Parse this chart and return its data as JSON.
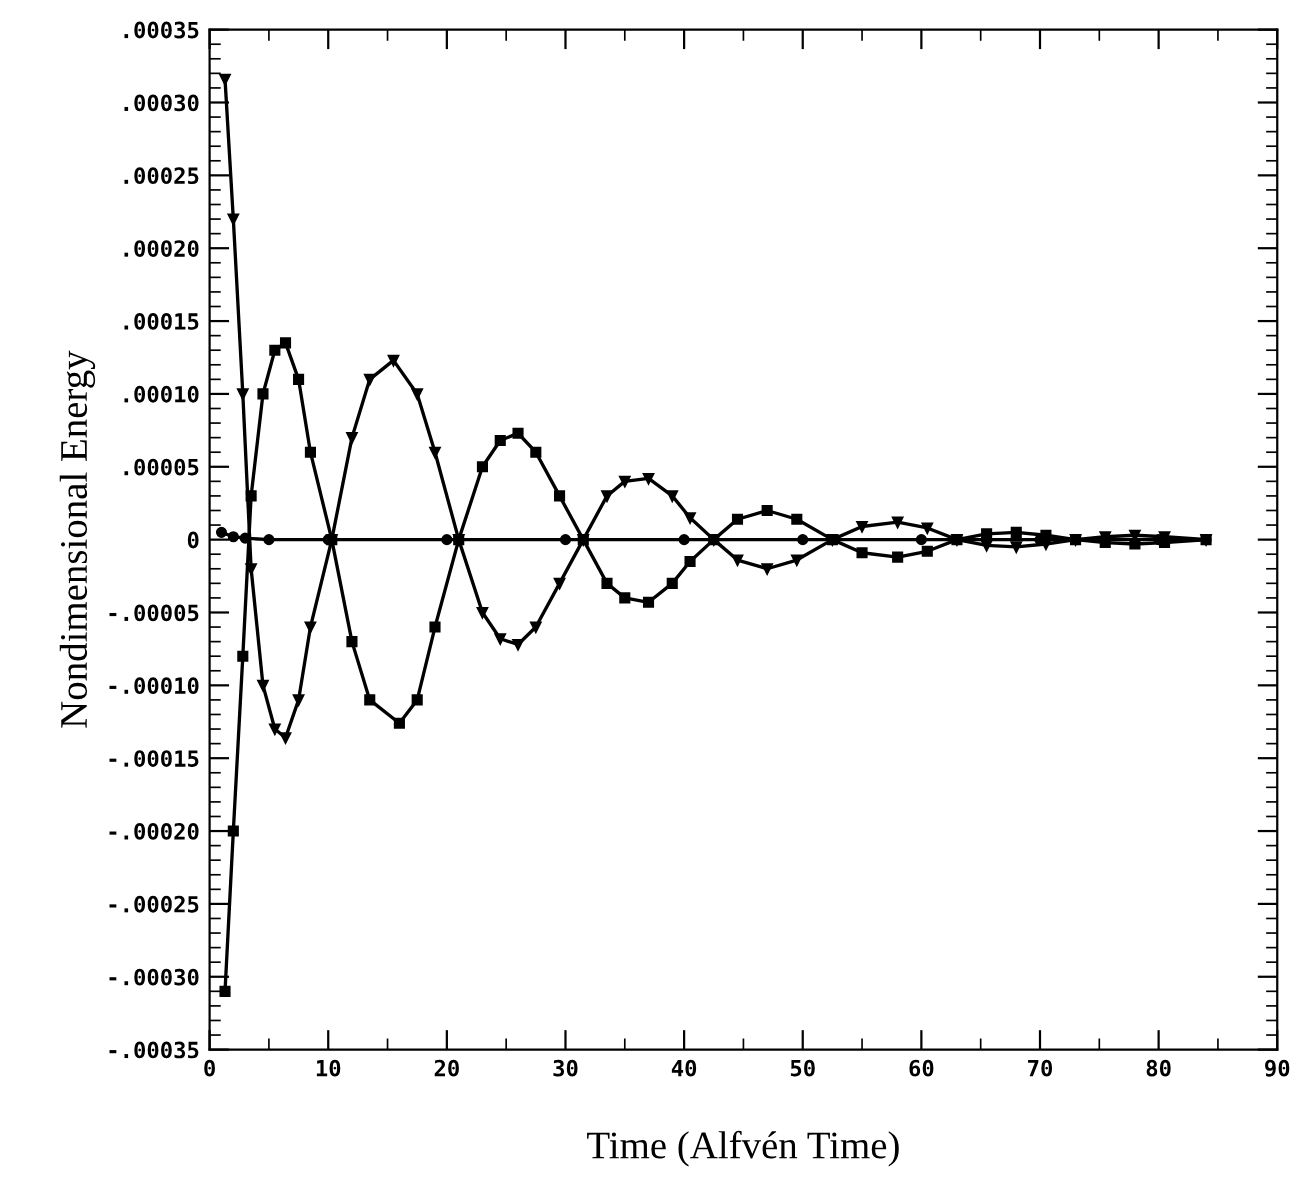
{
  "chart_data": {
    "type": "line",
    "xlabel": "Time (Alfvén Time)",
    "ylabel": "Nondimensional Energy",
    "xlim": [
      0,
      90
    ],
    "xticks": [
      0,
      10,
      20,
      30,
      40,
      50,
      60,
      70,
      80,
      90
    ],
    "ylim": [
      -0.00035,
      0.00035
    ],
    "yticks": [
      {
        "value": -0.00035,
        "label": "-.00035"
      },
      {
        "value": -0.0003,
        "label": "-.00030"
      },
      {
        "value": -0.00025,
        "label": "-.00025"
      },
      {
        "value": -0.0002,
        "label": "-.00020"
      },
      {
        "value": -0.00015,
        "label": "-.00015"
      },
      {
        "value": -0.0001,
        "label": "-.00010"
      },
      {
        "value": -5e-05,
        "label": "-.00005"
      },
      {
        "value": 0,
        "label": "0"
      },
      {
        "value": 5e-05,
        "label": ".00005"
      },
      {
        "value": 0.0001,
        "label": ".00010"
      },
      {
        "value": 0.00015,
        "label": ".00015"
      },
      {
        "value": 0.0002,
        "label": ".00020"
      },
      {
        "value": 0.00025,
        "label": ".00025"
      },
      {
        "value": 0.0003,
        "label": ".00030"
      },
      {
        "value": 0.00035,
        "label": ".00035"
      }
    ],
    "grid": false,
    "line_style": "solid",
    "series": [
      {
        "color": "#000000",
        "marker": "triangle",
        "x": [
          1.3,
          2,
          2.8,
          3.5,
          4.5,
          5.5,
          6.4,
          7.5,
          8.5,
          10.3,
          12,
          13.5,
          15.5,
          17.5,
          19,
          21,
          23,
          24.5,
          26,
          27.5,
          29.5,
          31.5,
          33.5,
          35,
          37,
          39,
          40.5,
          42.5,
          44.5,
          47,
          49.5,
          52.5,
          55,
          58,
          60.5,
          63,
          65.5,
          68,
          70.5,
          73,
          75.5,
          78,
          80.5,
          84
        ],
        "values": [
          0.000316,
          0.00022,
          0.0001,
          -2e-05,
          -0.0001,
          -0.00013,
          -0.000136,
          -0.00011,
          -6e-05,
          0,
          7e-05,
          0.00011,
          0.000123,
          0.0001,
          6e-05,
          0,
          -5e-05,
          -6.8e-05,
          -7.2e-05,
          -6e-05,
          -3e-05,
          0,
          3e-05,
          4e-05,
          4.2e-05,
          3e-05,
          1.5e-05,
          0,
          -1.4e-05,
          -2e-05,
          -1.4e-05,
          0,
          9e-06,
          1.2e-05,
          8e-06,
          0,
          -4e-06,
          -5e-06,
          -3e-06,
          0,
          2e-06,
          3e-06,
          2e-06,
          0
        ]
      },
      {
        "color": "#000000",
        "marker": "square",
        "x": [
          1.3,
          2,
          2.8,
          3.5,
          4.5,
          5.5,
          6.4,
          7.5,
          8.5,
          10.3,
          12,
          13.5,
          16,
          17.5,
          19,
          21,
          23,
          24.5,
          26,
          27.5,
          29.5,
          31.5,
          33.5,
          35,
          37,
          39,
          40.5,
          42.5,
          44.5,
          47,
          49.5,
          52.5,
          55,
          58,
          60.5,
          63,
          65.5,
          68,
          70.5,
          73,
          75.5,
          78,
          80.5,
          84
        ],
        "values": [
          -0.00031,
          -0.0002,
          -8e-05,
          3e-05,
          0.0001,
          0.00013,
          0.000135,
          0.00011,
          6e-05,
          0,
          -7e-05,
          -0.00011,
          -0.000126,
          -0.00011,
          -6e-05,
          0,
          5e-05,
          6.8e-05,
          7.3e-05,
          6e-05,
          3e-05,
          0,
          -3e-05,
          -4e-05,
          -4.3e-05,
          -3e-05,
          -1.5e-05,
          0,
          1.4e-05,
          2e-05,
          1.4e-05,
          0,
          -9e-06,
          -1.2e-05,
          -8e-06,
          0,
          4e-06,
          5e-06,
          3e-06,
          0,
          -2e-06,
          -3e-06,
          -2e-06,
          0
        ]
      },
      {
        "color": "#000000",
        "marker": "circle",
        "x": [
          1,
          2,
          3,
          5,
          10,
          20,
          30,
          40,
          50,
          60,
          70,
          80,
          84
        ],
        "values": [
          5e-06,
          2e-06,
          1e-06,
          0,
          0,
          0,
          0,
          0,
          0,
          0,
          0,
          0,
          0
        ]
      }
    ]
  }
}
